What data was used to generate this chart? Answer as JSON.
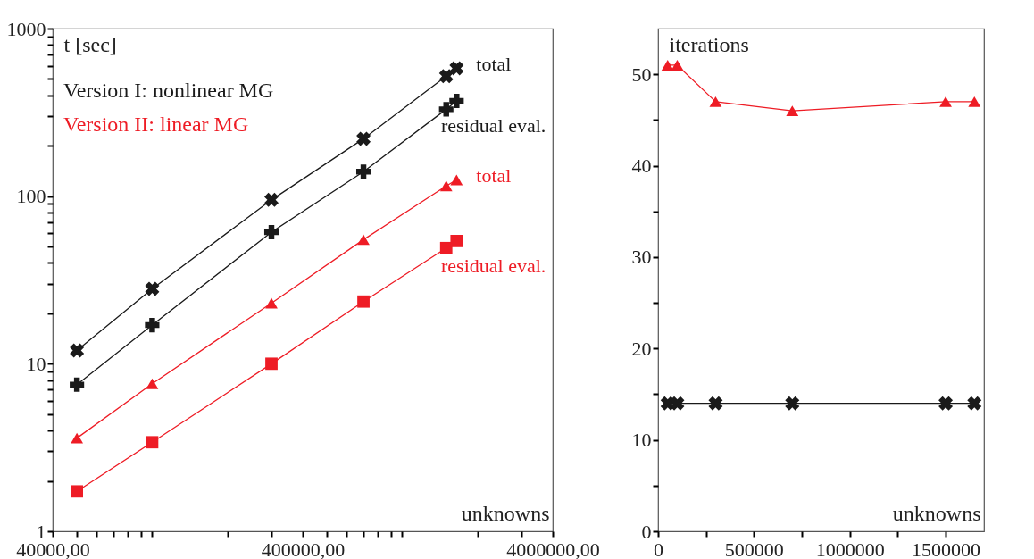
{
  "chart_data": [
    {
      "type": "line",
      "ylabel": "t [sec]",
      "xlabel": "unknowns",
      "log": "xy",
      "xlim": [
        40000,
        4000000
      ],
      "ylim": [
        1,
        1000
      ],
      "xticks": [
        {
          "value": 40000,
          "label": "40000,00"
        },
        {
          "value": 50000,
          "label": null
        },
        {
          "value": 60000,
          "label": null
        },
        {
          "value": 70000,
          "label": null
        },
        {
          "value": 80000,
          "label": null
        },
        {
          "value": 90000,
          "label": null
        },
        {
          "value": 100000,
          "label": null
        },
        {
          "value": 200000,
          "label": null
        },
        {
          "value": 300000,
          "label": null
        },
        {
          "value": 400000,
          "label": "400000,00"
        },
        {
          "value": 500000,
          "label": null
        },
        {
          "value": 600000,
          "label": null
        },
        {
          "value": 700000,
          "label": null
        },
        {
          "value": 800000,
          "label": null
        },
        {
          "value": 900000,
          "label": null
        },
        {
          "value": 1000000,
          "label": null
        },
        {
          "value": 2000000,
          "label": null
        },
        {
          "value": 3000000,
          "label": null
        },
        {
          "value": 4000000,
          "label": "4000000,00"
        }
      ],
      "yticks": [
        1,
        {
          "value": 2,
          "label": null
        },
        {
          "value": 3,
          "label": null
        },
        {
          "value": 4,
          "label": null
        },
        {
          "value": 5,
          "label": null
        },
        {
          "value": 6,
          "label": null
        },
        {
          "value": 7,
          "label": null
        },
        {
          "value": 8,
          "label": null
        },
        {
          "value": 9,
          "label": null
        },
        10,
        {
          "value": 20,
          "label": null
        },
        {
          "value": 30,
          "label": null
        },
        {
          "value": 40,
          "label": null
        },
        {
          "value": 50,
          "label": null
        },
        {
          "value": 60,
          "label": null
        },
        {
          "value": 70,
          "label": null
        },
        {
          "value": 80,
          "label": null
        },
        {
          "value": 90,
          "label": null
        },
        100,
        {
          "value": 200,
          "label": null
        },
        {
          "value": 300,
          "label": null
        },
        {
          "value": 400,
          "label": null
        },
        {
          "value": 500,
          "label": null
        },
        {
          "value": 600,
          "label": null
        },
        {
          "value": 700,
          "label": null
        },
        {
          "value": 800,
          "label": null
        },
        {
          "value": 900,
          "label": null
        },
        1000
      ],
      "annotations": [
        "Version I: nonlinear MG",
        "Version II: linear MG"
      ],
      "x": [
        50000,
        100000,
        300000,
        700000,
        1500000,
        1650000
      ],
      "series": [
        {
          "name": "total",
          "color": "#1a1a1a",
          "marker": "cross",
          "values": [
            12,
            28,
            95,
            220,
            520,
            580
          ]
        },
        {
          "name": "residual eval.",
          "color": "#1a1a1a",
          "marker": "plus",
          "values": [
            7.5,
            17,
            61,
            140,
            330,
            370
          ]
        },
        {
          "name": "total",
          "color": "#ee1c25",
          "marker": "triangle",
          "values": [
            3.6,
            7.6,
            23,
            55,
            115,
            125
          ]
        },
        {
          "name": "residual eval.",
          "color": "#ee1c25",
          "marker": "square",
          "values": [
            1.73,
            3.4,
            10,
            23.5,
            49,
            54
          ]
        }
      ]
    },
    {
      "type": "line",
      "ylabel": "iterations",
      "xlabel": "unknowns",
      "xlim": [
        0,
        1700000
      ],
      "ylim": [
        0,
        55
      ],
      "xticks": [
        0,
        {
          "value": 250000,
          "label": null
        },
        500000,
        {
          "value": 750000,
          "label": null
        },
        1000000,
        {
          "value": 1250000,
          "label": null
        },
        1500000
      ],
      "yticks": [
        0,
        {
          "value": 5,
          "label": null
        },
        10,
        {
          "value": 15,
          "label": null
        },
        20,
        {
          "value": 25,
          "label": null
        },
        30,
        {
          "value": 35,
          "label": null
        },
        40,
        {
          "value": 45,
          "label": null
        },
        50
      ],
      "x": [
        50000,
        100000,
        300000,
        700000,
        1500000,
        1650000
      ],
      "series": [
        {
          "color": "#ee1c25",
          "marker": "triangle",
          "values": [
            51,
            51,
            47,
            46,
            47,
            47
          ]
        },
        {
          "color": "#1a1a1a",
          "marker": "cross",
          "values": [
            14,
            14,
            14,
            14,
            14,
            14
          ]
        }
      ]
    }
  ]
}
